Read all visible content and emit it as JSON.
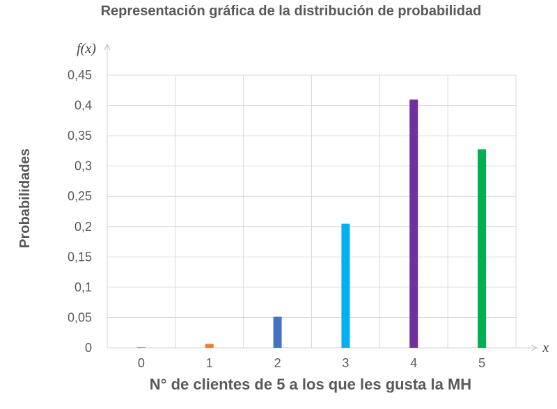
{
  "chart_data": {
    "type": "bar",
    "title": "Representación gráfica de la distribución de probabilidad",
    "ylabel": "Probabilidades",
    "xlabel": "N° de clientes de 5 a los que les gusta la MH",
    "y_axis_var": "f(x)",
    "x_axis_var": "x",
    "categories": [
      "0",
      "1",
      "2",
      "3",
      "4",
      "5"
    ],
    "values": [
      0.0003,
      0.0064,
      0.0512,
      0.2048,
      0.4096,
      0.3277
    ],
    "colors": [
      "#70ad47",
      "#ed7d31",
      "#4472c4",
      "#00b0f0",
      "#7030a0",
      "#00b050"
    ],
    "ylim": [
      0,
      0.45
    ],
    "yticks": [
      0,
      0.05,
      0.1,
      0.15,
      0.2,
      0.25,
      0.3,
      0.35,
      0.4,
      0.45
    ],
    "ytick_labels": [
      "0",
      "0,05",
      "0,1",
      "0,15",
      "0,2",
      "0,25",
      "0,3",
      "0,35",
      "0,4",
      "0,45"
    ],
    "grid": true,
    "legend": "none"
  }
}
